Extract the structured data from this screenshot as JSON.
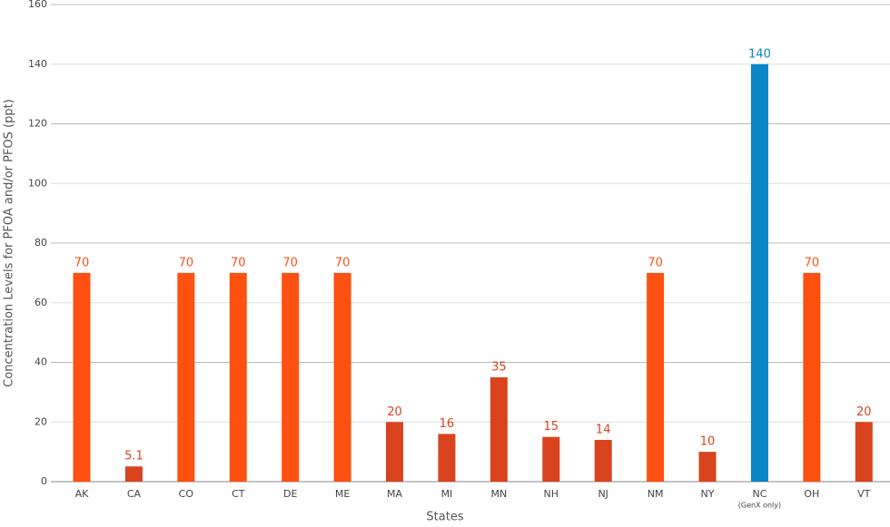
{
  "chart_data": {
    "type": "bar",
    "x_label": "States",
    "y_label": "Concentration Levels for PFOA and/or PFOS (ppt)",
    "categories": [
      "AK",
      "CA",
      "CO",
      "CT",
      "DE",
      "ME",
      "MA",
      "MI",
      "MN",
      "NH",
      "NJ",
      "NM",
      "NY",
      "NC",
      "OH",
      "VT"
    ],
    "sublabels": [
      null,
      null,
      null,
      null,
      null,
      null,
      null,
      null,
      null,
      null,
      null,
      null,
      null,
      "(GenX only)",
      null,
      null
    ],
    "values": [
      70,
      5.1,
      70,
      70,
      70,
      70,
      20,
      16,
      35,
      15,
      14,
      70,
      10,
      140,
      70,
      20
    ],
    "colors": [
      "#fe5011",
      "#d9431e",
      "#fe5011",
      "#fe5011",
      "#fe5011",
      "#fe5011",
      "#d9431e",
      "#d9431e",
      "#d9431e",
      "#d9431e",
      "#d9431e",
      "#fe5011",
      "#d9431e",
      "#0a86c8",
      "#fe5011",
      "#d9431e"
    ],
    "ylim": [
      0,
      160
    ],
    "yticks": [
      0,
      20,
      40,
      60,
      80,
      100,
      120,
      140,
      160
    ],
    "grid": true
  }
}
